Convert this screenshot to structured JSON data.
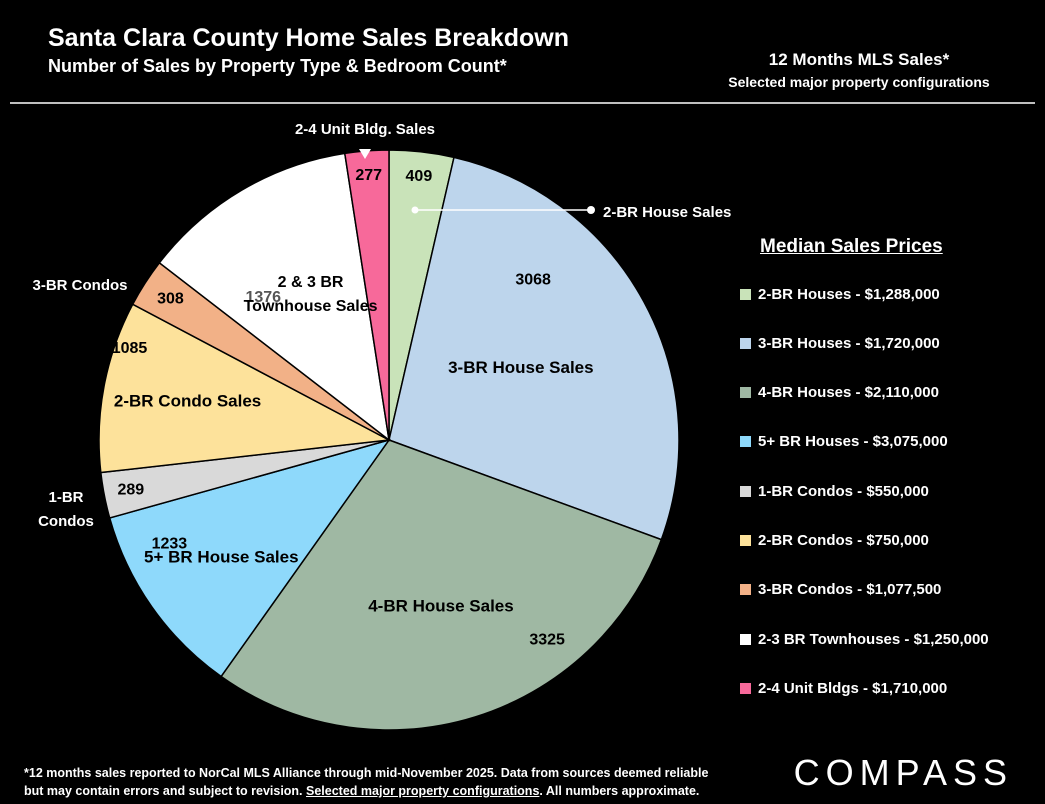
{
  "header": {
    "title": "Santa Clara County Home Sales Breakdown",
    "subtitle": "Number of Sales by Property Type & Bedroom Count*",
    "top_right_line1": "12 Months MLS Sales*",
    "top_right_line2": "Selected major property configurations"
  },
  "chart_data": {
    "type": "pie",
    "title": "Santa Clara County Home Sales Breakdown",
    "subtitle": "Number of Sales by Property Type & Bedroom Count*",
    "slices": [
      {
        "key": "2br-house",
        "value": 409,
        "color": "#c9e3b9",
        "label": ""
      },
      {
        "key": "3br-house",
        "value": 3068,
        "color": "#bdd5ec",
        "label": "3-BR House Sales"
      },
      {
        "key": "4br-house",
        "value": 3325,
        "color": "#9fb8a3",
        "label": "4-BR House Sales"
      },
      {
        "key": "5br-house",
        "value": 1233,
        "color": "#8ed9fb",
        "label": "5+ BR House Sales"
      },
      {
        "key": "1br-condo",
        "value": 289,
        "color": "#d9d9d9",
        "label": ""
      },
      {
        "key": "2br-condo",
        "value": 1085,
        "color": "#fde29b",
        "label": "2-BR Condo Sales"
      },
      {
        "key": "3br-condo",
        "value": 308,
        "color": "#f2b187",
        "label": ""
      },
      {
        "key": "townhouse",
        "value": 1376,
        "color": "#ffffff",
        "label": "2 & 3 BR Townhouse Sales"
      },
      {
        "key": "2-4-unit",
        "value": 277,
        "color": "#f7699a",
        "label": ""
      }
    ],
    "external_labels": {
      "two_br_house": "2-BR House Sales",
      "three_br_condo": "3-BR Condos",
      "one_br_condo": "1-BR Condos",
      "two_four_unit": "2-4 Unit Bldg. Sales"
    }
  },
  "legend": {
    "title": "Median Sales Prices",
    "items": [
      {
        "label": "2-BR Houses - $1,288,000",
        "color": "#c9e3b9"
      },
      {
        "label": "3-BR Houses - $1,720,000",
        "color": "#bdd5ec"
      },
      {
        "label": "4-BR Houses - $2,110,000",
        "color": "#9fb8a3"
      },
      {
        "label": "5+ BR Houses - $3,075,000",
        "color": "#8ed9fb"
      },
      {
        "label": "1-BR Condos - $550,000",
        "color": "#d9d9d9"
      },
      {
        "label": "2-BR Condos - $750,000",
        "color": "#fde29b"
      },
      {
        "label": "3-BR Condos - $1,077,500",
        "color": "#f2b187"
      },
      {
        "label": "2-3 BR Townhouses - $1,250,000",
        "color": "#ffffff"
      },
      {
        "label": "2-4 Unit Bldgs - $1,710,000",
        "color": "#f7699a"
      }
    ]
  },
  "footnote": {
    "line1": "*12 months sales reported to NorCal MLS Alliance through mid-November 2025. Data from sources deemed reliable",
    "line2_start": "but may contain errors and subject to revision. ",
    "line2_underlined": "Selected major property configurations",
    "line2_end": ". All numbers approximate."
  },
  "brand": {
    "logo": "COMPASS"
  }
}
